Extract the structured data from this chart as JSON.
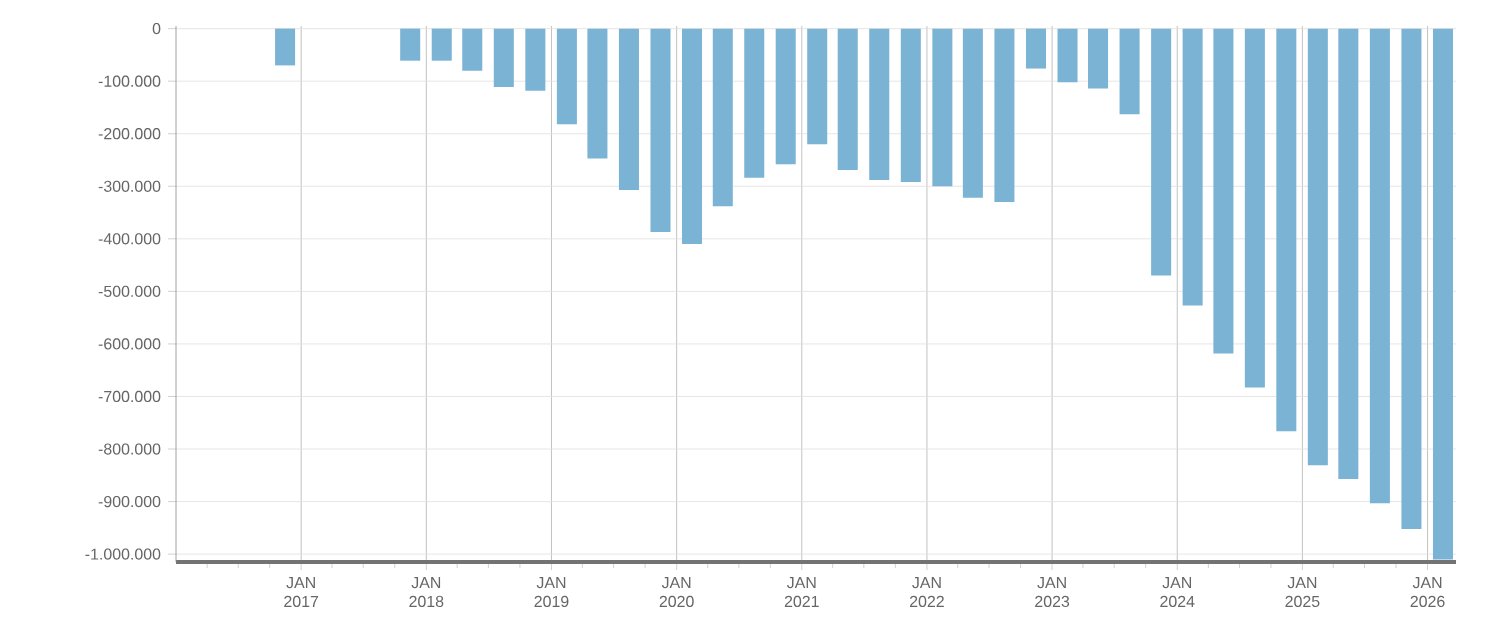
{
  "chart_data": {
    "type": "bar",
    "color": "#7ab3d4",
    "grid": true,
    "x": [
      "2016-11-15",
      "2017-11-15",
      "2018-02-15",
      "2018-05-15",
      "2018-08-15",
      "2018-11-15",
      "2019-02-15",
      "2019-05-15",
      "2019-08-15",
      "2019-11-15",
      "2020-02-15",
      "2020-05-15",
      "2020-08-15",
      "2020-11-15",
      "2021-02-15",
      "2021-05-15",
      "2021-08-15",
      "2021-11-15",
      "2022-02-15",
      "2022-05-15",
      "2022-08-15",
      "2022-11-15",
      "2023-02-15",
      "2023-05-15",
      "2023-08-15",
      "2023-11-15",
      "2024-02-15",
      "2024-05-15",
      "2024-08-15",
      "2024-11-15",
      "2025-02-15",
      "2025-05-15",
      "2025-08-15",
      "2025-11-15",
      "2026-02-15"
    ],
    "values": [
      -70000,
      -61000,
      -61000,
      -80000,
      -111000,
      -118000,
      -182000,
      -247000,
      -307000,
      -387000,
      -410000,
      -338000,
      -284000,
      -258000,
      -220000,
      -269000,
      -288000,
      -292000,
      -300000,
      -322000,
      -330000,
      -76000,
      -102000,
      -114000,
      -163000,
      -470000,
      -527000,
      -618000,
      -683000,
      -766000,
      -831000,
      -857000,
      -903000,
      -952000,
      -1010000
    ],
    "xlim": [
      "2016-01-01",
      "2026-03-25"
    ],
    "ylim": [
      -1015000,
      5000
    ],
    "yticks": [
      {
        "value": -1000000,
        "label": "-1.000.000"
      },
      {
        "value": -900000,
        "label": "-900.000"
      },
      {
        "value": -800000,
        "label": "-800.000"
      },
      {
        "value": -700000,
        "label": "-700.000"
      },
      {
        "value": -600000,
        "label": "-600.000"
      },
      {
        "value": -500000,
        "label": "-500.000"
      },
      {
        "value": -400000,
        "label": "-400.000"
      },
      {
        "value": -300000,
        "label": "-300.000"
      },
      {
        "value": -200000,
        "label": "-200.000"
      },
      {
        "value": -100000,
        "label": "-100.000"
      },
      0
    ],
    "xticks": [
      {
        "value": "2016-04-01",
        "label": null
      },
      {
        "value": "2016-07-01",
        "label": null
      },
      {
        "value": "2016-10-01",
        "label": null
      },
      {
        "value": "2017-01-01",
        "label": "JAN 2017"
      },
      {
        "value": "2017-04-01",
        "label": null
      },
      {
        "value": "2017-07-01",
        "label": null
      },
      {
        "value": "2017-10-01",
        "label": null
      },
      {
        "value": "2018-01-01",
        "label": "JAN 2018"
      },
      {
        "value": "2018-04-01",
        "label": null
      },
      {
        "value": "2018-07-01",
        "label": null
      },
      {
        "value": "2018-10-01",
        "label": null
      },
      {
        "value": "2019-01-01",
        "label": "JAN 2019"
      },
      {
        "value": "2019-04-01",
        "label": null
      },
      {
        "value": "2019-07-01",
        "label": null
      },
      {
        "value": "2019-10-01",
        "label": null
      },
      {
        "value": "2020-01-01",
        "label": "JAN 2020"
      },
      {
        "value": "2020-04-01",
        "label": null
      },
      {
        "value": "2020-07-01",
        "label": null
      },
      {
        "value": "2020-10-01",
        "label": null
      },
      {
        "value": "2021-01-01",
        "label": "JAN 2021"
      },
      {
        "value": "2021-04-01",
        "label": null
      },
      {
        "value": "2021-07-01",
        "label": null
      },
      {
        "value": "2021-10-01",
        "label": null
      },
      {
        "value": "2022-01-01",
        "label": "JAN 2022"
      },
      {
        "value": "2022-04-01",
        "label": null
      },
      {
        "value": "2022-07-01",
        "label": null
      },
      {
        "value": "2022-10-01",
        "label": null
      },
      {
        "value": "2023-01-01",
        "label": "JAN 2023"
      },
      {
        "value": "2023-04-01",
        "label": null
      },
      {
        "value": "2023-07-01",
        "label": null
      },
      {
        "value": "2023-10-01",
        "label": null
      },
      {
        "value": "2024-01-01",
        "label": "JAN 2024"
      },
      {
        "value": "2024-04-01",
        "label": null
      },
      {
        "value": "2024-07-01",
        "label": null
      },
      {
        "value": "2024-10-01",
        "label": null
      },
      {
        "value": "2025-01-01",
        "label": "JAN 2025"
      },
      {
        "value": "2025-04-01",
        "label": null
      },
      {
        "value": "2025-07-01",
        "label": null
      },
      {
        "value": "2025-10-01",
        "label": null
      },
      {
        "value": "2026-01-01",
        "label": "JAN 2026"
      }
    ]
  }
}
